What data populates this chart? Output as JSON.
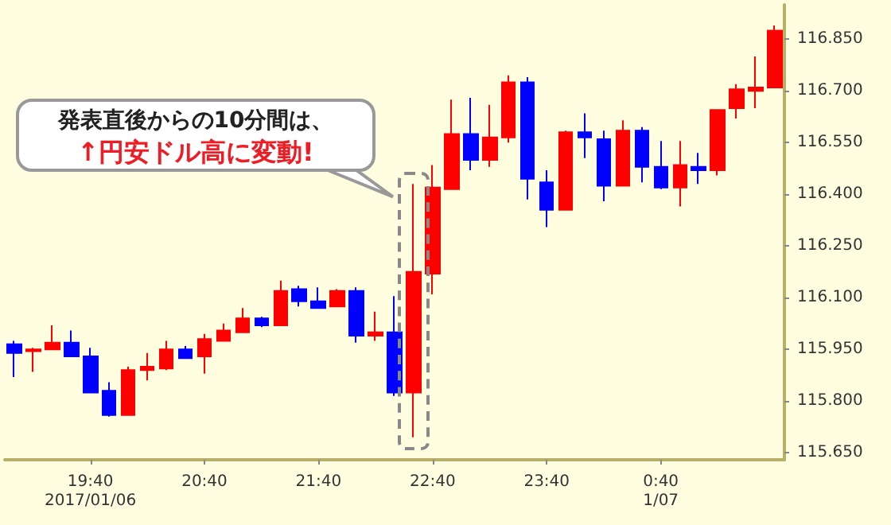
{
  "chart_data": {
    "type": "candlestick",
    "categories": [
      null,
      null,
      null,
      null,
      "19:40\n2017/01/06",
      null,
      null,
      null,
      null,
      null,
      "20:40",
      null,
      null,
      null,
      null,
      null,
      "21:40",
      null,
      null,
      null,
      null,
      null,
      "22:40",
      null,
      null,
      null,
      null,
      null,
      "23:40",
      null,
      null,
      null,
      null,
      null,
      "0:40\n1/07",
      null,
      null,
      null,
      null,
      null,
      null
    ],
    "ohlc": [
      [
        115.965,
        115.975,
        115.87,
        115.94
      ],
      [
        115.945,
        115.955,
        115.885,
        115.95
      ],
      [
        115.95,
        116.02,
        115.95,
        115.97
      ],
      [
        115.97,
        116.005,
        115.93,
        115.93
      ],
      [
        115.93,
        115.955,
        115.825,
        115.825
      ],
      [
        115.83,
        115.855,
        115.755,
        115.76
      ],
      [
        115.76,
        115.9,
        115.76,
        115.89
      ],
      [
        115.89,
        115.94,
        115.86,
        115.9
      ],
      [
        115.895,
        115.975,
        115.89,
        115.95
      ],
      [
        115.95,
        115.96,
        115.925,
        115.925
      ],
      [
        115.93,
        115.995,
        115.88,
        115.98
      ],
      [
        115.975,
        116.025,
        115.975,
        116.005
      ],
      [
        116.0,
        116.07,
        116.0,
        116.04
      ],
      [
        116.04,
        116.045,
        116.015,
        116.02
      ],
      [
        116.02,
        116.15,
        116.02,
        116.12
      ],
      [
        116.125,
        116.135,
        116.075,
        116.09
      ],
      [
        116.09,
        116.13,
        116.07,
        116.07
      ],
      [
        116.075,
        116.125,
        116.075,
        116.12
      ],
      [
        116.12,
        116.13,
        115.97,
        115.99
      ],
      [
        115.99,
        116.06,
        115.975,
        116.0
      ],
      [
        116.0,
        116.105,
        115.815,
        115.825
      ],
      [
        115.825,
        116.43,
        115.695,
        116.175
      ],
      [
        116.17,
        116.485,
        116.11,
        116.42
      ],
      [
        116.415,
        116.675,
        116.415,
        116.575
      ],
      [
        116.575,
        116.68,
        116.47,
        116.5
      ],
      [
        116.5,
        116.66,
        116.48,
        116.565
      ],
      [
        116.565,
        116.745,
        116.55,
        116.725
      ],
      [
        116.725,
        116.74,
        116.385,
        116.445
      ],
      [
        116.435,
        116.47,
        116.305,
        116.355
      ],
      [
        116.355,
        116.585,
        116.355,
        116.58
      ],
      [
        116.58,
        116.635,
        116.505,
        116.565
      ],
      [
        116.56,
        116.585,
        116.38,
        116.425
      ],
      [
        116.425,
        116.615,
        116.425,
        116.585
      ],
      [
        116.585,
        116.595,
        116.435,
        116.48
      ],
      [
        116.48,
        116.555,
        116.415,
        116.42
      ],
      [
        116.42,
        116.555,
        116.365,
        116.485
      ],
      [
        116.48,
        116.52,
        116.43,
        116.47
      ],
      [
        116.47,
        116.645,
        116.455,
        116.645
      ],
      [
        116.65,
        116.72,
        116.62,
        116.705
      ],
      [
        116.7,
        116.8,
        116.65,
        116.71
      ],
      [
        116.71,
        116.89,
        116.71,
        116.875
      ]
    ],
    "colors": [
      "#0000ff",
      "#ff0000",
      "#ff0000",
      "#0000ff",
      "#0000ff",
      "#0000ff",
      "#ff0000",
      "#ff0000",
      "#ff0000",
      "#0000ff",
      "#ff0000",
      "#ff0000",
      "#ff0000",
      "#0000ff",
      "#ff0000",
      "#0000ff",
      "#0000ff",
      "#ff0000",
      "#0000ff",
      "#ff0000",
      "#0000ff",
      "#ff0000",
      "#ff0000",
      "#ff0000",
      "#0000ff",
      "#ff0000",
      "#ff0000",
      "#0000ff",
      "#0000ff",
      "#ff0000",
      "#0000ff",
      "#0000ff",
      "#ff0000",
      "#0000ff",
      "#0000ff",
      "#ff0000",
      "#0000ff",
      "#ff0000",
      "#ff0000",
      "#ff0000",
      "#ff0000"
    ],
    "ylim": [
      115.63,
      116.95
    ],
    "yticks": [
      {
        "value": 115.65,
        "label": "115.650"
      },
      {
        "value": 115.8,
        "label": "115.800"
      },
      {
        "value": 115.95,
        "label": "115.950"
      },
      {
        "value": 116.1,
        "label": "116.100"
      },
      {
        "value": 116.25,
        "label": "116.250"
      },
      {
        "value": 116.4,
        "label": "116.400"
      },
      {
        "value": 116.55,
        "label": "116.550"
      },
      {
        "value": 116.7,
        "label": "116.700"
      },
      {
        "value": 116.85,
        "label": "116.850"
      }
    ],
    "annotations": [
      "発表直後からの10分間は、",
      "↑円安ドル高に変動!"
    ],
    "grid": false
  }
}
